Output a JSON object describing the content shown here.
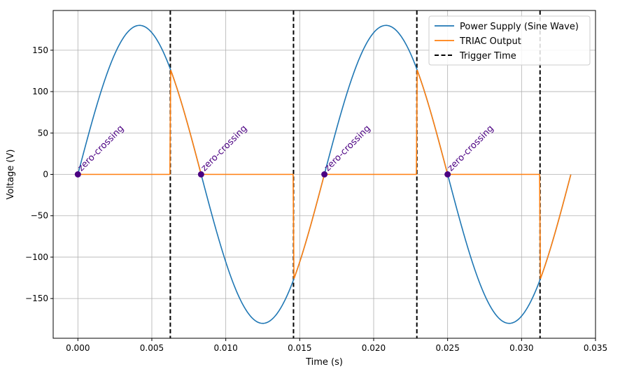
{
  "chart_data": {
    "type": "line",
    "title": "",
    "xlabel": "Time (s)",
    "ylabel": "Voltage (V)",
    "xlim": [
      -0.00167,
      0.035
    ],
    "ylim": [
      -198,
      198
    ],
    "xticks": [
      0.0,
      0.005,
      0.01,
      0.015,
      0.02,
      0.025,
      0.03,
      0.035
    ],
    "xtick_labels": [
      "0.000",
      "0.005",
      "0.010",
      "0.015",
      "0.020",
      "0.025",
      "0.030",
      "0.035"
    ],
    "yticks": [
      -150,
      -100,
      -50,
      0,
      50,
      100,
      150
    ],
    "ytick_labels": [
      "−150",
      "−100",
      "−50",
      "0",
      "50",
      "100",
      "150"
    ],
    "grid": true,
    "legend_position": "top-right",
    "supply": {
      "amplitude": 180,
      "frequency": 60,
      "t_end": 0.03333
    },
    "trigger_times": [
      0.00625,
      0.01458,
      0.02292,
      0.03125
    ],
    "zero_crossings": [
      0.0,
      0.00833,
      0.01667,
      0.025
    ],
    "annotation_text": "zero-crossing",
    "series": [
      {
        "name": "Power Supply (Sine Wave)",
        "color": "#1f77b4",
        "style": "solid"
      },
      {
        "name": "TRIAC Output",
        "color": "#ff7f0e",
        "style": "solid"
      },
      {
        "name": "Trigger Time",
        "color": "#000000",
        "style": "dashed"
      }
    ],
    "marker_color": "#4b0082"
  }
}
